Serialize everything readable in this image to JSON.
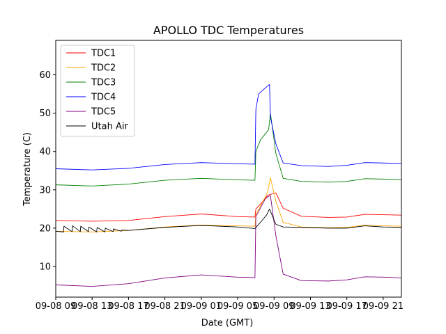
{
  "chart_data": {
    "type": "line",
    "title": "APOLLO TDC Temperatures",
    "xlabel": "Date (GMT)",
    "ylabel": "Temperature (C)",
    "xlim": [
      0,
      38
    ],
    "ylim": [
      2,
      69
    ],
    "yticks": [
      10,
      20,
      30,
      40,
      50,
      60
    ],
    "xticks": [
      {
        "pos": 0,
        "label": "09-08 09"
      },
      {
        "pos": 4,
        "label": "09-08 13"
      },
      {
        "pos": 8,
        "label": "09-08 17"
      },
      {
        "pos": 12,
        "label": "09-08 21"
      },
      {
        "pos": 16,
        "label": "09-09 01"
      },
      {
        "pos": 20,
        "label": "09-09 05"
      },
      {
        "pos": 24,
        "label": "09-09 09"
      },
      {
        "pos": 28,
        "label": "09-09 13"
      },
      {
        "pos": 32,
        "label": "09-09 17"
      },
      {
        "pos": 36,
        "label": "09-09 21"
      }
    ],
    "legend_position": "top-left",
    "series": [
      {
        "name": "TDC1",
        "color": "#ff0000",
        "x": [
          0,
          4,
          8,
          12,
          16,
          20,
          21.9,
          22.0,
          23,
          23.3,
          24.2,
          25,
          27,
          30,
          32,
          34,
          36,
          38
        ],
        "y": [
          22.0,
          21.8,
          22.0,
          23.0,
          23.7,
          23.0,
          22.9,
          25.0,
          27.6,
          28.6,
          29.2,
          25.2,
          23.1,
          22.8,
          22.9,
          23.6,
          23.5,
          23.4
        ]
      },
      {
        "name": "TDC2",
        "color": "#ffa500",
        "x": [
          0,
          4,
          8,
          12,
          16,
          20,
          21.9,
          22.0,
          23,
          23.3,
          23.6,
          24.2,
          25,
          27,
          30,
          32,
          34,
          36,
          38
        ],
        "y": [
          19.2,
          19.0,
          19.4,
          20.3,
          20.8,
          20.6,
          20.5,
          23.5,
          28.0,
          29.5,
          33.2,
          27.0,
          21.5,
          20.3,
          20.1,
          20.2,
          20.8,
          20.6,
          20.5
        ]
      },
      {
        "name": "TDC3",
        "color": "#008000",
        "x": [
          0,
          4,
          8,
          12,
          16,
          20,
          21.9,
          22.0,
          22.5,
          23,
          23.4,
          23.6,
          24.2,
          25,
          27,
          30,
          32,
          34,
          36,
          38
        ],
        "y": [
          31.3,
          31.0,
          31.5,
          32.5,
          33.0,
          32.6,
          32.5,
          40.0,
          43.0,
          44.5,
          45.7,
          50.0,
          39.5,
          33.0,
          32.2,
          32.0,
          32.2,
          32.9,
          32.8,
          32.6
        ]
      },
      {
        "name": "TDC4",
        "color": "#0000ff",
        "x": [
          0,
          4,
          8,
          12,
          16,
          20,
          21.9,
          22.0,
          22.3,
          23,
          23.5,
          23.6,
          24.2,
          25,
          27,
          30,
          32,
          34,
          36,
          38
        ],
        "y": [
          35.5,
          35.2,
          35.6,
          36.6,
          37.1,
          36.8,
          36.7,
          51.0,
          55.0,
          56.5,
          57.5,
          49.0,
          42.0,
          37.0,
          36.3,
          36.1,
          36.4,
          37.1,
          37.0,
          36.9
        ]
      },
      {
        "name": "TDC5",
        "color": "#800080",
        "x": [
          0,
          4,
          8,
          12,
          16,
          20,
          21.9,
          22.0,
          23,
          23.3,
          23.6,
          24.2,
          25,
          27,
          30,
          32,
          34,
          36,
          38
        ],
        "y": [
          5.2,
          4.8,
          5.5,
          7.0,
          7.8,
          7.2,
          7.1,
          23.0,
          27.5,
          28.2,
          28.5,
          18.0,
          8.0,
          6.3,
          6.2,
          6.5,
          7.3,
          7.2,
          7.0
        ]
      },
      {
        "name": "Utah Air",
        "color": "#000000",
        "x": [
          0,
          0.85,
          0.9,
          1.8,
          1.85,
          2.7,
          2.75,
          3.6,
          3.65,
          4.5,
          4.55,
          5.4,
          5.45,
          6.3,
          6.35,
          7.2,
          7.25,
          8,
          12,
          16,
          20,
          21.9,
          22.5,
          23.2,
          23.5,
          24.2,
          25,
          27,
          30,
          32,
          34,
          36,
          38
        ],
        "y": [
          19.2,
          19.0,
          20.5,
          19.1,
          20.6,
          19.1,
          20.5,
          19.1,
          20.3,
          19.0,
          20.2,
          19.0,
          20.0,
          19.1,
          19.8,
          19.2,
          19.5,
          19.4,
          20.2,
          20.7,
          20.3,
          19.9,
          21.5,
          23.5,
          25.0,
          21.0,
          20.3,
          20.2,
          20.0,
          20.0,
          20.6,
          20.3,
          20.2
        ]
      }
    ]
  }
}
